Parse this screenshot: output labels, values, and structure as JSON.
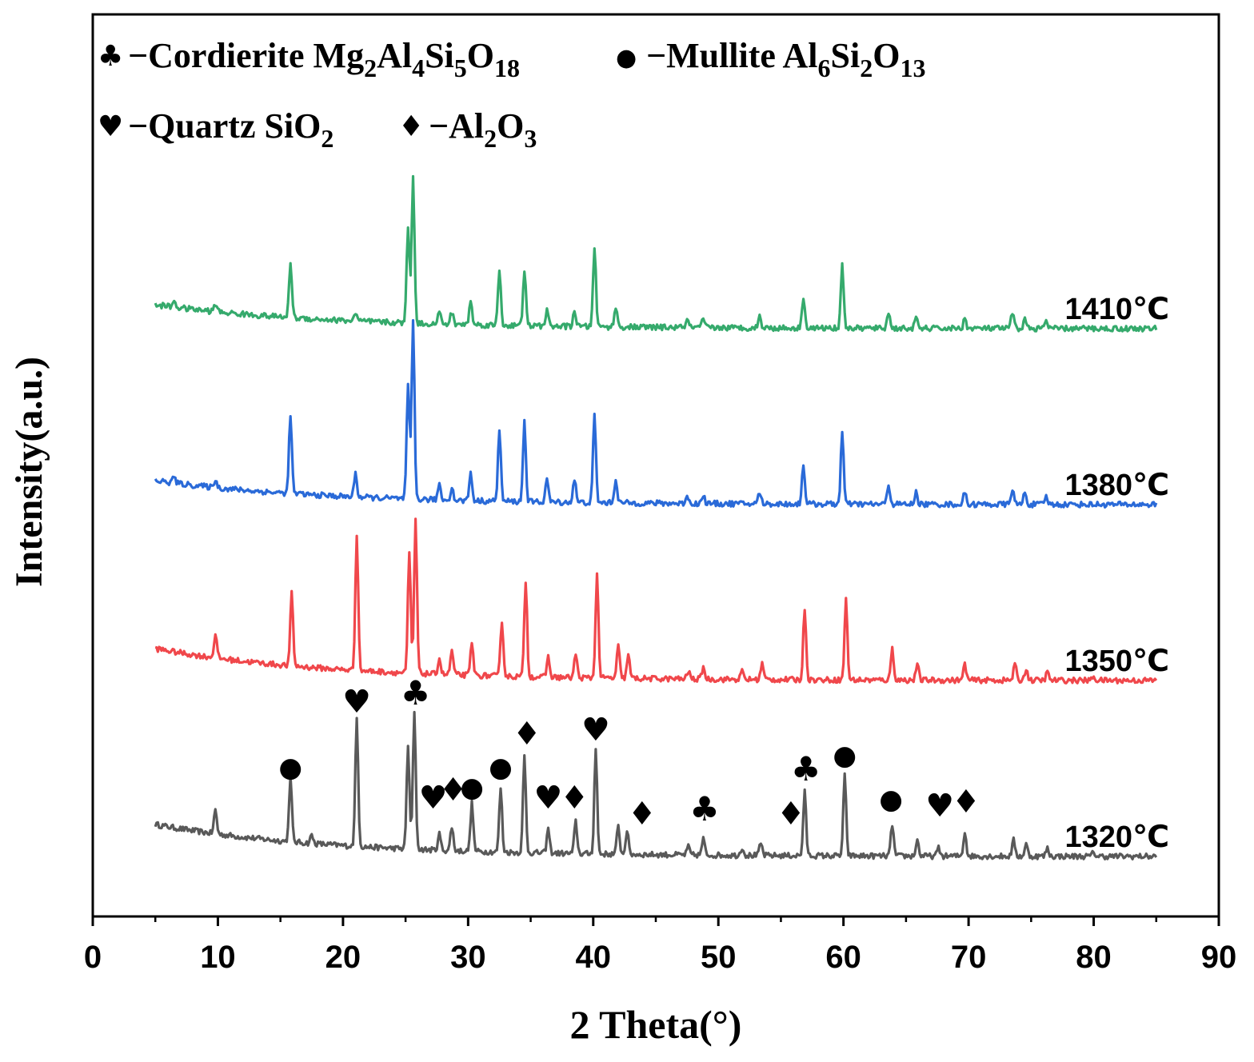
{
  "chart_data": {
    "type": "line",
    "xlabel": "2 Theta(°)",
    "ylabel": "Intensity(a.u.)",
    "xlim": [
      0,
      90
    ],
    "xticks": [
      "0",
      "10",
      "20",
      "30",
      "40",
      "50",
      "60",
      "70",
      "80",
      "90"
    ],
    "y_scale": "offset stacked, arbitrary units",
    "grid": false,
    "legend_position": "top-left",
    "legend": [
      {
        "symbol": "♣",
        "text": "−Cordierite Mg2Al4Si5O18",
        "main": "−Cordierite Mg",
        "parts": [
          [
            "2",
            "sub"
          ],
          [
            "Al",
            ""
          ],
          [
            "4",
            "sub"
          ],
          [
            "Si",
            ""
          ],
          [
            "5",
            "sub"
          ],
          [
            "O",
            ""
          ],
          [
            "18",
            "sub"
          ]
        ]
      },
      {
        "symbol": "●",
        "text": "−Mullite Al6Si2O13",
        "main": "−Mullite Al",
        "parts": [
          [
            "6",
            "sub"
          ],
          [
            "Si",
            ""
          ],
          [
            "2",
            "sub"
          ],
          [
            "O",
            ""
          ],
          [
            "13",
            "sub"
          ]
        ]
      },
      {
        "symbol": "♥",
        "text": "−Quartz SiO2",
        "main": "−Quartz SiO",
        "parts": [
          [
            "2",
            "sub"
          ]
        ]
      },
      {
        "symbol": "♦",
        "text": "−Al2O3",
        "main": "−Al",
        "parts": [
          [
            "2",
            "sub"
          ],
          [
            "O",
            ""
          ],
          [
            "3",
            "sub"
          ]
        ]
      }
    ],
    "series": [
      {
        "label": "1320℃",
        "color": "#595959",
        "baseline": 0.0,
        "drop": 4,
        "peaks": [
          [
            9.8,
            3
          ],
          [
            15.8,
            8
          ],
          [
            17.5,
            1
          ],
          [
            21.1,
            16
          ],
          [
            25.2,
            13
          ],
          [
            25.7,
            17
          ],
          [
            27.7,
            2
          ],
          [
            28.7,
            3
          ],
          [
            30.3,
            6
          ],
          [
            32.6,
            8
          ],
          [
            34.5,
            12
          ],
          [
            36.4,
            3
          ],
          [
            38.6,
            4
          ],
          [
            40.2,
            13
          ],
          [
            42.0,
            3.5
          ],
          [
            42.7,
            3
          ],
          [
            47.6,
            1
          ],
          [
            48.8,
            2
          ],
          [
            51.9,
            1
          ],
          [
            53.4,
            1.5
          ],
          [
            56.9,
            8
          ],
          [
            60.1,
            10
          ],
          [
            63.9,
            4
          ],
          [
            65.9,
            2
          ],
          [
            67.6,
            1
          ],
          [
            69.7,
            3
          ],
          [
            73.6,
            2
          ],
          [
            74.6,
            1.5
          ],
          [
            76.3,
            1
          ],
          [
            80.0,
            0.5
          ]
        ]
      },
      {
        "label": "1350℃",
        "color": "#f0474b",
        "baseline": 22.0,
        "drop": 4,
        "peaks": [
          [
            9.8,
            3
          ],
          [
            15.9,
            9
          ],
          [
            21.1,
            17
          ],
          [
            25.3,
            15
          ],
          [
            25.8,
            19
          ],
          [
            27.7,
            2
          ],
          [
            28.7,
            3
          ],
          [
            30.3,
            4
          ],
          [
            32.7,
            7
          ],
          [
            34.6,
            12
          ],
          [
            36.4,
            2.5
          ],
          [
            38.6,
            3
          ],
          [
            40.3,
            13
          ],
          [
            42.0,
            4
          ],
          [
            42.8,
            3
          ],
          [
            47.6,
            1
          ],
          [
            48.8,
            1.5
          ],
          [
            51.9,
            1
          ],
          [
            53.5,
            2
          ],
          [
            56.9,
            9
          ],
          [
            60.2,
            10
          ],
          [
            63.9,
            4
          ],
          [
            65.9,
            2
          ],
          [
            69.7,
            2
          ],
          [
            73.7,
            2
          ],
          [
            74.6,
            1.5
          ],
          [
            76.3,
            1
          ],
          [
            80.0,
            0.5
          ]
        ]
      },
      {
        "label": "1380℃",
        "color": "#2a6ad8",
        "baseline": 44.0,
        "drop": 3,
        "peaks": [
          [
            6.5,
            0.8
          ],
          [
            9.8,
            1
          ],
          [
            15.8,
            10
          ],
          [
            21.0,
            3
          ],
          [
            25.2,
            14
          ],
          [
            25.6,
            22
          ],
          [
            27.7,
            2
          ],
          [
            28.7,
            1.5
          ],
          [
            30.2,
            3.5
          ],
          [
            32.5,
            9
          ],
          [
            34.5,
            10
          ],
          [
            36.3,
            3
          ],
          [
            38.5,
            3
          ],
          [
            40.1,
            11
          ],
          [
            41.8,
            3
          ],
          [
            47.5,
            1
          ],
          [
            48.8,
            1
          ],
          [
            53.3,
            1.5
          ],
          [
            56.8,
            5
          ],
          [
            59.9,
            9
          ],
          [
            63.6,
            2.5
          ],
          [
            65.8,
            1.5
          ],
          [
            69.7,
            1.5
          ],
          [
            73.5,
            2
          ],
          [
            74.5,
            1.5
          ],
          [
            76.2,
            1
          ]
        ]
      },
      {
        "label": "1410℃",
        "color": "#35aa6c",
        "baseline": 66.0,
        "drop": 3,
        "peaks": [
          [
            6.5,
            0.8
          ],
          [
            9.8,
            1
          ],
          [
            15.8,
            7
          ],
          [
            21.0,
            1
          ],
          [
            25.2,
            12
          ],
          [
            25.6,
            18
          ],
          [
            27.7,
            1.5
          ],
          [
            28.7,
            1.5
          ],
          [
            30.2,
            3
          ],
          [
            32.5,
            7
          ],
          [
            34.5,
            7
          ],
          [
            36.3,
            2
          ],
          [
            38.5,
            2
          ],
          [
            40.1,
            10
          ],
          [
            41.8,
            2.5
          ],
          [
            47.5,
            1
          ],
          [
            48.8,
            1
          ],
          [
            53.3,
            1.5
          ],
          [
            56.8,
            4
          ],
          [
            59.9,
            8
          ],
          [
            63.6,
            2
          ],
          [
            65.8,
            1.2
          ],
          [
            69.7,
            1.2
          ],
          [
            73.5,
            2
          ],
          [
            74.5,
            1.2
          ],
          [
            76.2,
            1
          ]
        ]
      }
    ],
    "phase_markers": [
      {
        "symbol": "●",
        "x": 15.8,
        "y": 10.5
      },
      {
        "symbol": "♥",
        "x": 21.1,
        "y": 18.5
      },
      {
        "symbol": "♣",
        "x": 25.8,
        "y": 19.5
      },
      {
        "symbol": "♥",
        "x": 27.2,
        "y": 6.5
      },
      {
        "symbol": "♦",
        "x": 28.8,
        "y": 7.5
      },
      {
        "symbol": "●",
        "x": 30.3,
        "y": 8
      },
      {
        "symbol": "●",
        "x": 32.6,
        "y": 10.5
      },
      {
        "symbol": "♦",
        "x": 34.7,
        "y": 14.5
      },
      {
        "symbol": "♥",
        "x": 36.4,
        "y": 6.5
      },
      {
        "symbol": "♦",
        "x": 38.5,
        "y": 6.5
      },
      {
        "symbol": "♥",
        "x": 40.2,
        "y": 15
      },
      {
        "symbol": "♦",
        "x": 43.9,
        "y": 4.5
      },
      {
        "symbol": "♣",
        "x": 48.9,
        "y": 5
      },
      {
        "symbol": "♦",
        "x": 55.8,
        "y": 4.5
      },
      {
        "symbol": "♣",
        "x": 57.0,
        "y": 10
      },
      {
        "symbol": "●",
        "x": 60.1,
        "y": 12
      },
      {
        "symbol": "●",
        "x": 63.8,
        "y": 6.5
      },
      {
        "symbol": "♥",
        "x": 67.7,
        "y": 5.5
      },
      {
        "symbol": "♦",
        "x": 69.8,
        "y": 6
      }
    ]
  }
}
